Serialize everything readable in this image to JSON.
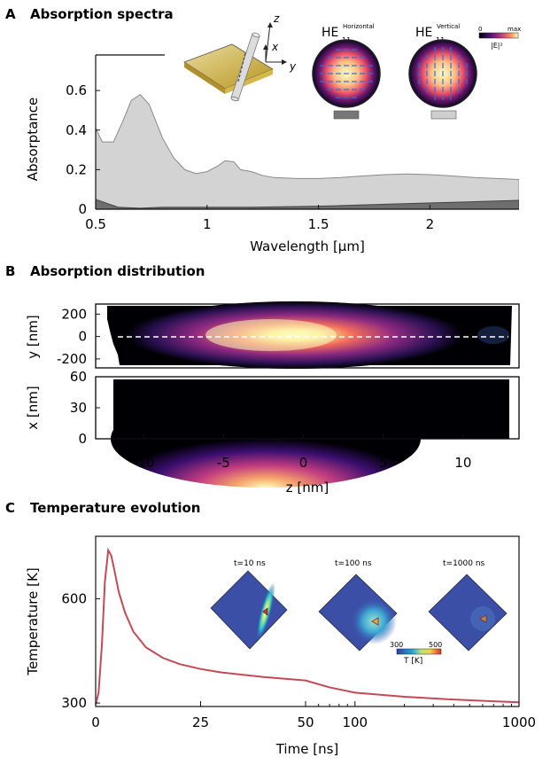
{
  "panels": {
    "a": {
      "letter": "A",
      "title": "Absorption spectra"
    },
    "b": {
      "letter": "B",
      "title": "Absorption distribution"
    },
    "c": {
      "letter": "C",
      "title": "Temperature evolution"
    }
  },
  "inset_a": {
    "axes": {
      "z": "z",
      "x": "x",
      "y": "y"
    },
    "mode_h": {
      "base": "HE",
      "sub": "11",
      "sup": "Horizontal"
    },
    "mode_v": {
      "base": "HE",
      "sub": "11",
      "sup": "Vertical"
    },
    "colorbar": {
      "min": "0",
      "max": "max",
      "label": "|E|²"
    },
    "colors": {
      "horizontal": "#777777",
      "vertical": "#cfcfcf"
    }
  },
  "inset_c": {
    "snapshots": [
      "t=10 ns",
      "t=100 ns",
      "t=1000 ns"
    ],
    "colorbar": {
      "min": "300",
      "max": "500",
      "label": "T [K]"
    }
  },
  "chart_data": [
    {
      "type": "area",
      "xlabel": "Wavelength [μm]",
      "ylabel": "Absorptance",
      "xlim": [
        0.5,
        2.4
      ],
      "ylim": [
        0,
        0.78
      ],
      "xticks": [
        0.5,
        1,
        1.5,
        2
      ],
      "yticks": [
        0,
        0.2,
        0.4,
        0.6
      ],
      "series": [
        {
          "color": "#d3d3d3",
          "x": [
            0.5,
            0.53,
            0.58,
            0.62,
            0.66,
            0.7,
            0.74,
            0.8,
            0.85,
            0.9,
            0.95,
            1.0,
            1.05,
            1.08,
            1.12,
            1.15,
            1.2,
            1.25,
            1.3,
            1.4,
            1.5,
            1.6,
            1.7,
            1.8,
            1.9,
            2.0,
            2.1,
            2.2,
            2.3,
            2.4
          ],
          "y": [
            0.41,
            0.34,
            0.34,
            0.44,
            0.55,
            0.58,
            0.53,
            0.36,
            0.26,
            0.2,
            0.18,
            0.19,
            0.22,
            0.245,
            0.24,
            0.2,
            0.19,
            0.17,
            0.16,
            0.155,
            0.155,
            0.16,
            0.168,
            0.175,
            0.178,
            0.175,
            0.168,
            0.16,
            0.155,
            0.15
          ]
        },
        {
          "color": "#6e6e6e",
          "x": [
            0.5,
            0.55,
            0.6,
            0.7,
            0.8,
            1.0,
            1.2,
            1.5,
            1.8,
            2.1,
            2.4
          ],
          "y": [
            0.05,
            0.03,
            0.01,
            0.005,
            0.01,
            0.01,
            0.01,
            0.015,
            0.025,
            0.035,
            0.045
          ]
        }
      ]
    },
    {
      "type": "heatmap",
      "ylabel": "y [nm]",
      "xlim": [
        -13,
        13.5
      ],
      "ylim": [
        -280,
        290
      ],
      "yticks": [
        -200,
        0,
        200
      ]
    },
    {
      "type": "heatmap",
      "xlabel": "z [nm]",
      "ylabel": "x [nm]",
      "xlim": [
        -13,
        13.5
      ],
      "ylim": [
        0,
        60
      ],
      "xticks": [
        -10,
        -5,
        0,
        5,
        10
      ],
      "yticks": [
        0,
        30,
        60
      ]
    },
    {
      "type": "line",
      "xlabel": "Time [ns]",
      "ylabel": "Temperature [K]",
      "ylim": [
        290,
        780
      ],
      "xticks": [
        0,
        25,
        50,
        100,
        1000
      ],
      "yticks": [
        300,
        600
      ],
      "color": "#c44a55",
      "x": [
        0,
        0.7,
        1.5,
        2.2,
        3,
        3.7,
        4.5,
        5.5,
        7,
        9,
        12,
        16,
        20,
        25,
        30,
        40,
        50,
        70,
        100,
        200,
        400,
        700,
        1000
      ],
      "y": [
        295,
        330,
        470,
        650,
        740,
        725,
        680,
        620,
        560,
        505,
        460,
        430,
        412,
        398,
        388,
        375,
        365,
        345,
        330,
        318,
        310,
        305,
        302
      ]
    }
  ]
}
